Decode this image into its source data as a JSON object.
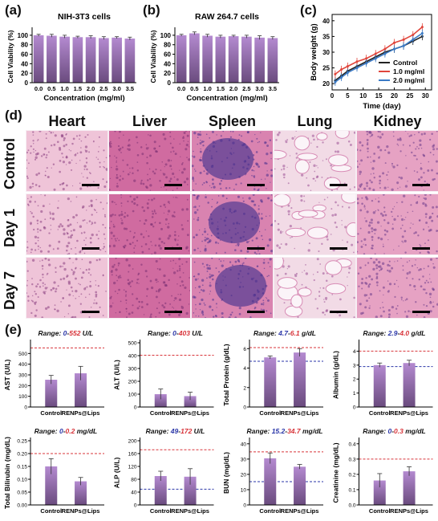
{
  "panels": {
    "a": "(a)",
    "b": "(b)",
    "c": "(c)",
    "d": "(d)",
    "e": "(e)"
  },
  "panel_a": {
    "title": "NIH-3T3 cells",
    "ylabel": "Cell Viability (%)",
    "xlabel": "Concentration (mg/ml)",
    "categories": [
      "0.0",
      "0.5",
      "1.0",
      "1.5",
      "2.0",
      "2.5",
      "3.0",
      "3.5"
    ],
    "values": [
      100,
      99,
      97,
      96,
      96,
      94,
      95,
      93
    ],
    "errors": [
      2,
      3,
      3,
      2,
      3,
      3,
      2,
      3
    ],
    "yticks": [
      "0",
      "20",
      "40",
      "60",
      "80",
      "100"
    ],
    "ylim": [
      0,
      110
    ]
  },
  "panel_b": {
    "title": "RAW 264.7 cells",
    "ylabel": "Cell Viability (%)",
    "xlabel": "Concentration (mg/ml)",
    "categories": [
      "0.0",
      "0.5",
      "1.0",
      "1.5",
      "2.0",
      "2.5",
      "3.0",
      "3.5"
    ],
    "values": [
      100,
      104,
      99,
      97,
      98,
      97,
      95,
      94
    ],
    "errors": [
      2,
      3,
      3,
      3,
      2,
      3,
      4,
      3
    ],
    "yticks": [
      "0",
      "20",
      "40",
      "60",
      "80",
      "100"
    ],
    "ylim": [
      0,
      110
    ]
  },
  "panel_c": {
    "ylabel": "Body weight (g)",
    "xlabel": "Time (day)",
    "xticks": [
      "0",
      "5",
      "10",
      "15",
      "20",
      "25",
      "30"
    ],
    "yticks": [
      "20",
      "25",
      "30",
      "35",
      "40"
    ],
    "xlim": [
      0,
      32
    ],
    "ylim": [
      18,
      42
    ],
    "series": [
      {
        "name": "Control",
        "color": "#222222",
        "x": [
          1,
          3,
          5,
          8,
          11,
          14,
          17,
          20,
          23,
          26,
          29
        ],
        "y": [
          21,
          22.5,
          24,
          25.5,
          27,
          28.5,
          30,
          31,
          32,
          33.5,
          35
        ]
      },
      {
        "name": "1.0 mg/ml",
        "color": "#e0463c",
        "x": [
          1,
          3,
          5,
          8,
          11,
          14,
          17,
          20,
          23,
          26,
          29
        ],
        "y": [
          23,
          24.5,
          25.5,
          27,
          28,
          29.5,
          31,
          33,
          34,
          35.5,
          38
        ]
      },
      {
        "name": "2.0 mg/ml",
        "color": "#3a7ac6",
        "x": [
          1,
          3,
          5,
          8,
          11,
          14,
          17,
          20,
          23,
          26,
          29
        ],
        "y": [
          20.5,
          22,
          23.5,
          25,
          26.5,
          28,
          29.5,
          31,
          32,
          34,
          36
        ]
      }
    ]
  },
  "panel_d": {
    "organs": [
      "Heart",
      "Liver",
      "Spleen",
      "Lung",
      "Kidney"
    ],
    "rows": [
      "Control",
      "Day 1",
      "Day 7"
    ]
  },
  "panel_e": {
    "categories": [
      "Control",
      "RENPs@Lips"
    ],
    "charts": [
      {
        "ylabel": "AST (U/L)",
        "range_prefix": "Range: ",
        "range_low": "0",
        "range_sep": "-",
        "range_high": "552",
        "unit": " U/L",
        "yticks": [
          "0",
          "100",
          "200",
          "300",
          "400",
          "500"
        ],
        "ylim": [
          0,
          600
        ],
        "low": 0,
        "high": 552,
        "values": [
          255,
          315
        ],
        "errors": [
          40,
          65
        ]
      },
      {
        "ylabel": "ALT (U/L)",
        "range_prefix": "Range: ",
        "range_low": "0",
        "range_sep": "-",
        "range_high": "403",
        "unit": " U/L",
        "yticks": [
          "0",
          "100",
          "200",
          "300",
          "400",
          "500"
        ],
        "ylim": [
          0,
          500
        ],
        "low": 0,
        "high": 403,
        "values": [
          100,
          85
        ],
        "errors": [
          40,
          30
        ]
      },
      {
        "ylabel": "Total Protein (g/dL)",
        "range_prefix": "Range: ",
        "range_low": "4.7",
        "range_sep": "-",
        "range_high": "6.1",
        "unit": " g/dL",
        "yticks": [
          "0",
          "2",
          "4",
          "6"
        ],
        "ylim": [
          0,
          6.6
        ],
        "low": 4.7,
        "high": 6.1,
        "values": [
          5.1,
          5.6
        ],
        "errors": [
          0.15,
          0.4
        ]
      },
      {
        "ylabel": "Albumin (g/dL)",
        "range_prefix": "Range: ",
        "range_low": "2.9",
        "range_sep": "-",
        "range_high": "4.0",
        "unit": " g/dL",
        "yticks": [
          "0",
          "1",
          "2",
          "3",
          "4"
        ],
        "ylim": [
          0,
          4.6
        ],
        "low": 2.9,
        "high": 4.0,
        "values": [
          3.0,
          3.15
        ],
        "errors": [
          0.15,
          0.2
        ]
      },
      {
        "ylabel": "Total Bilirubin (mg/dL)",
        "range_prefix": "Range: ",
        "range_low": "0",
        "range_sep": "-",
        "range_high": "0.2",
        "unit": " mg/dL",
        "yticks": [
          "0.00",
          "0.05",
          "0.10",
          "0.15",
          "0.20",
          "0.25"
        ],
        "ylim": [
          0,
          0.25
        ],
        "low": 0,
        "high": 0.2,
        "values": [
          0.15,
          0.092
        ],
        "errors": [
          0.03,
          0.015
        ]
      },
      {
        "ylabel": "ALP (U/L)",
        "range_prefix": "Range: ",
        "range_low": "49",
        "range_sep": "-",
        "range_high": "172",
        "unit": " U/L",
        "yticks": [
          "0",
          "40",
          "80",
          "120",
          "160",
          "200"
        ],
        "ylim": [
          0,
          200
        ],
        "low": 49,
        "high": 172,
        "values": [
          90,
          88
        ],
        "errors": [
          15,
          25
        ]
      },
      {
        "ylabel": "BUN (mg/dL)",
        "range_prefix": "Range: ",
        "range_low": "15.2",
        "range_sep": "-",
        "range_high": "34.7",
        "unit": " mg/dL",
        "yticks": [
          "0",
          "10",
          "20",
          "30",
          "40"
        ],
        "ylim": [
          0,
          42
        ],
        "low": 15.2,
        "high": 34.7,
        "values": [
          30.5,
          25
        ],
        "errors": [
          3.5,
          1.5
        ]
      },
      {
        "ylabel": "Creatinine (mg/dL)",
        "range_prefix": "Range: ",
        "range_low": "0",
        "range_sep": "-",
        "range_high": "0.3",
        "unit": " mg/dL",
        "yticks": [
          "0.0",
          "0.1",
          "0.2",
          "0.3",
          "0.4"
        ],
        "ylim": [
          0,
          0.42
        ],
        "low": 0,
        "high": 0.3,
        "values": [
          0.16,
          0.22
        ],
        "errors": [
          0.045,
          0.03
        ]
      }
    ]
  },
  "colors": {
    "bar_top": "#b48ad0",
    "bar_bottom": "#6a4b7e",
    "range_high": "#d8343a",
    "range_low": "#2a36a8",
    "series_c": [
      "#222222",
      "#e0463c",
      "#3a7ac6"
    ]
  }
}
